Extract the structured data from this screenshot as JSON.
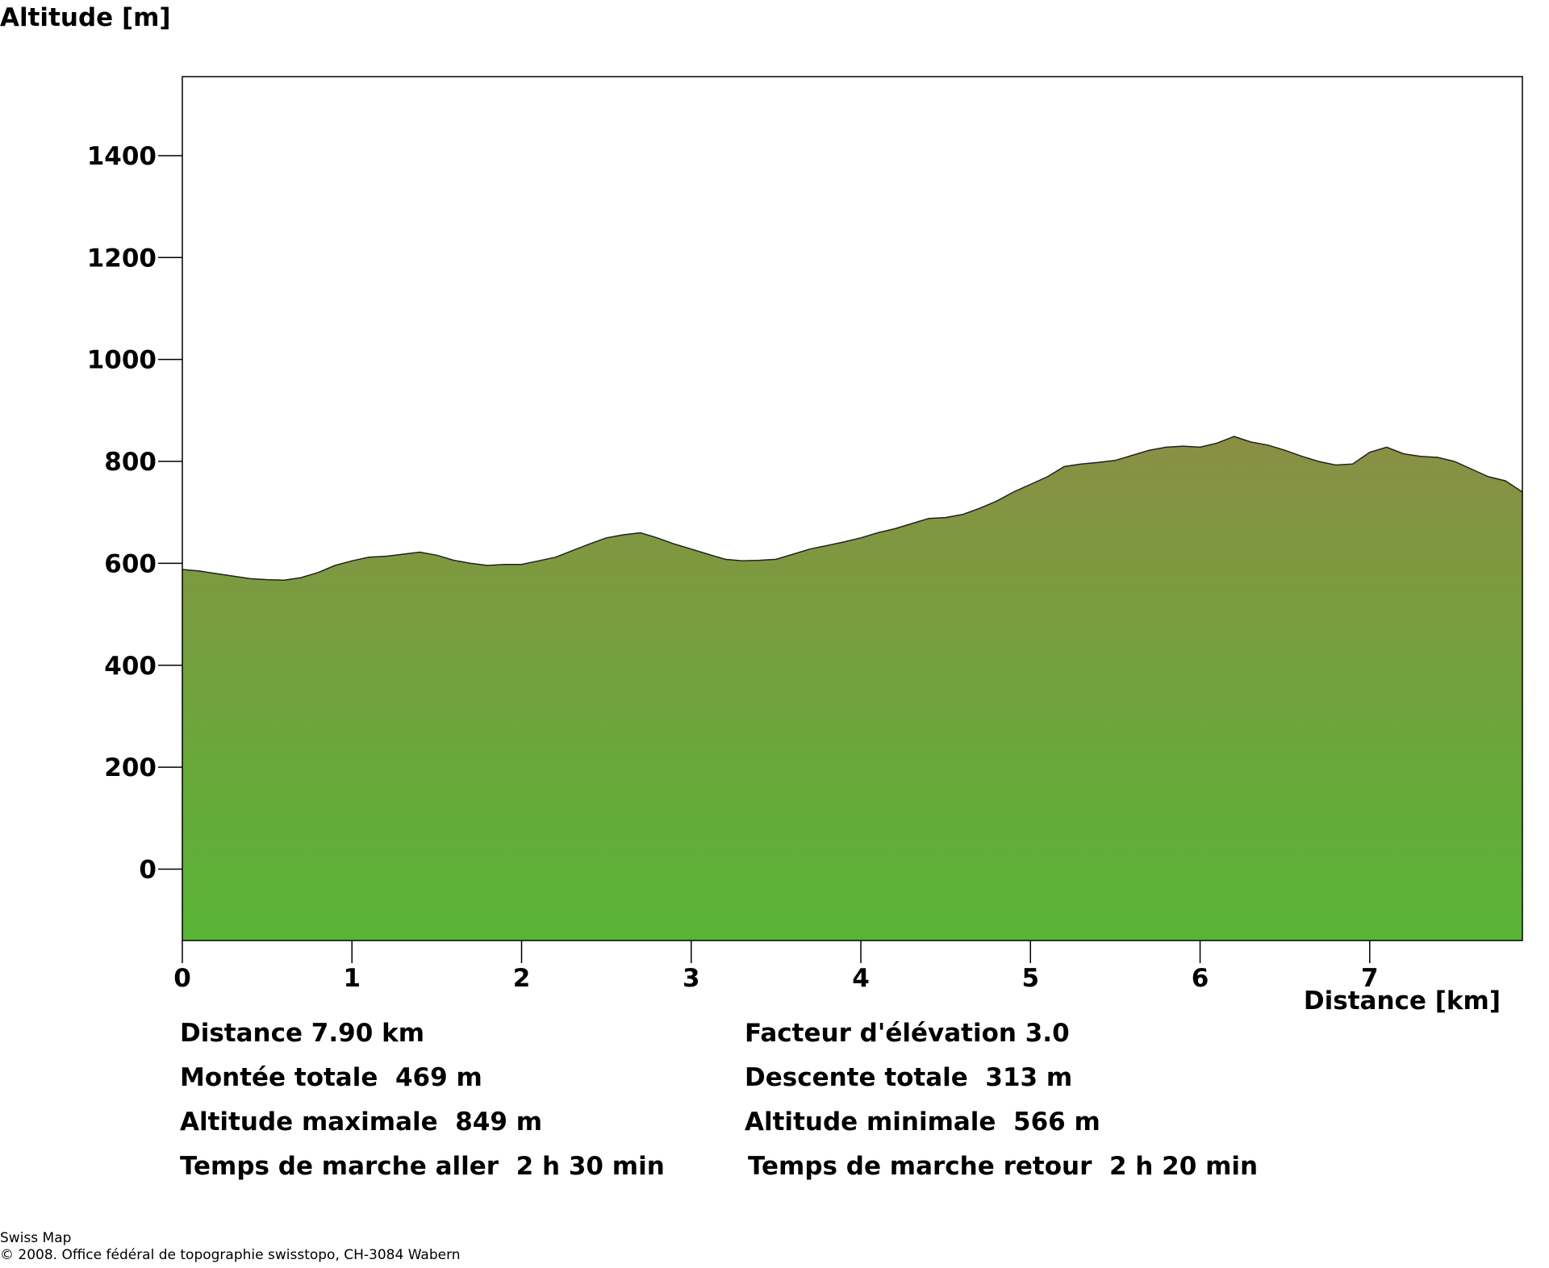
{
  "chart_data": {
    "type": "area",
    "ylabel": "Altitude [m]",
    "xlabel": "Distance [km]",
    "xlim": [
      0,
      7.9
    ],
    "ylim": [
      -140,
      1555
    ],
    "xticks": [
      "0",
      "1",
      "2",
      "3",
      "4",
      "5",
      "6",
      "7"
    ],
    "yticks": [
      "0",
      "200",
      "400",
      "600",
      "800",
      "1000",
      "1200",
      "1400"
    ],
    "grid": false,
    "colors": {
      "fill_top": "#8a8f44",
      "fill_bottom": "#58b535",
      "line": "#222222"
    },
    "x": [
      0,
      0.1,
      0.2,
      0.3,
      0.4,
      0.5,
      0.6,
      0.7,
      0.8,
      0.9,
      1.0,
      1.1,
      1.2,
      1.3,
      1.4,
      1.5,
      1.6,
      1.7,
      1.8,
      1.9,
      2.0,
      2.1,
      2.2,
      2.3,
      2.4,
      2.5,
      2.6,
      2.7,
      2.8,
      2.9,
      3.0,
      3.1,
      3.2,
      3.3,
      3.4,
      3.5,
      3.6,
      3.7,
      3.8,
      3.9,
      4.0,
      4.1,
      4.2,
      4.3,
      4.4,
      4.5,
      4.6,
      4.7,
      4.8,
      4.9,
      5.0,
      5.1,
      5.2,
      5.3,
      5.4,
      5.5,
      5.6,
      5.7,
      5.8,
      5.9,
      6.0,
      6.1,
      6.2,
      6.3,
      6.4,
      6.5,
      6.6,
      6.7,
      6.8,
      6.9,
      7.0,
      7.1,
      7.2,
      7.3,
      7.4,
      7.5,
      7.6,
      7.7,
      7.8,
      7.9
    ],
    "y": [
      588,
      585,
      580,
      575,
      570,
      568,
      567,
      572,
      582,
      596,
      605,
      612,
      614,
      618,
      622,
      616,
      606,
      600,
      596,
      598,
      598,
      605,
      612,
      625,
      638,
      650,
      656,
      660,
      650,
      638,
      628,
      618,
      608,
      605,
      606,
      608,
      618,
      628,
      635,
      642,
      650,
      660,
      668,
      678,
      688,
      690,
      696,
      708,
      722,
      740,
      755,
      770,
      790,
      795,
      798,
      802,
      812,
      822,
      828,
      830,
      828,
      836,
      849,
      838,
      832,
      822,
      810,
      800,
      793,
      795,
      818,
      828,
      815,
      810,
      808,
      800,
      785,
      770,
      762,
      740
    ]
  },
  "stats": {
    "distance": "Distance 7.90 km",
    "elevation_factor": "Facteur d'élévation 3.0",
    "ascent": "Montée totale  469 m",
    "descent": "Descente totale  313 m",
    "max_alt": "Altitude maximale  849 m",
    "min_alt": "Altitude minimale  566 m",
    "time_out": "Temps de marche aller  2 h 30 min",
    "time_back": "Temps de marche retour  2 h 20 min"
  },
  "footer": {
    "line1": "Swiss Map",
    "line2": "© 2008. Office fédéral de topographie swisstopo, CH-3084 Wabern"
  }
}
